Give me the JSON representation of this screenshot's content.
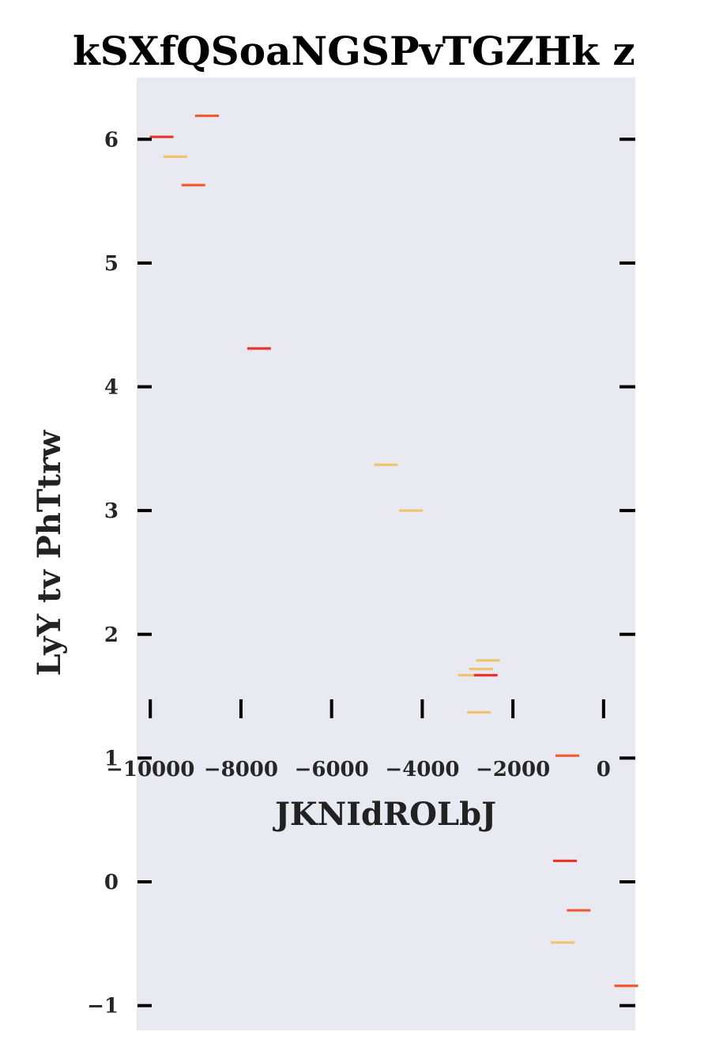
{
  "chart_data": {
    "type": "scatter",
    "marker": "horizontal-dash",
    "title": "kSXfQSoaNGSPvTGZHk z",
    "xlabel": "JKNIdROLbJ",
    "ylabel": "LyY  tv PhTtrw",
    "xlim": [
      -10300,
      700
    ],
    "ylim": [
      -1.2,
      6.5
    ],
    "x_ticks": [
      -10000,
      -8000,
      -6000,
      -4000,
      -2000,
      0
    ],
    "x_tick_labels": [
      "−10000",
      "−8000",
      "−6000",
      "−4000",
      "−2000",
      "0"
    ],
    "y_ticks": [
      -1,
      0,
      1,
      2,
      3,
      4,
      5,
      6
    ],
    "y_tick_labels": [
      "−1",
      "0",
      "1",
      "2",
      "3",
      "4",
      "5",
      "6"
    ],
    "grid": false,
    "background": "#e9e9f1",
    "colors": {
      "red": "#e8342a",
      "orange": "#f25a30",
      "yellow": "#f0c46c"
    },
    "points": [
      {
        "x": -9750,
        "y": 6.02,
        "color": "red"
      },
      {
        "x": -8750,
        "y": 6.19,
        "color": "orange"
      },
      {
        "x": -9450,
        "y": 5.86,
        "color": "yellow"
      },
      {
        "x": -9050,
        "y": 5.63,
        "color": "orange"
      },
      {
        "x": -7600,
        "y": 4.31,
        "color": "red"
      },
      {
        "x": -4800,
        "y": 3.37,
        "color": "yellow"
      },
      {
        "x": -4250,
        "y": 3.0,
        "color": "yellow"
      },
      {
        "x": -2550,
        "y": 1.79,
        "color": "yellow"
      },
      {
        "x": -2700,
        "y": 1.72,
        "color": "yellow"
      },
      {
        "x": -2950,
        "y": 1.67,
        "color": "yellow"
      },
      {
        "x": -2600,
        "y": 1.67,
        "color": "red"
      },
      {
        "x": -2750,
        "y": 1.37,
        "color": "yellow"
      },
      {
        "x": -800,
        "y": 1.02,
        "color": "orange"
      },
      {
        "x": -850,
        "y": 0.17,
        "color": "red"
      },
      {
        "x": -550,
        "y": -0.23,
        "color": "orange"
      },
      {
        "x": -900,
        "y": -0.49,
        "color": "yellow"
      },
      {
        "x": 500,
        "y": -0.84,
        "color": "orange"
      }
    ]
  }
}
